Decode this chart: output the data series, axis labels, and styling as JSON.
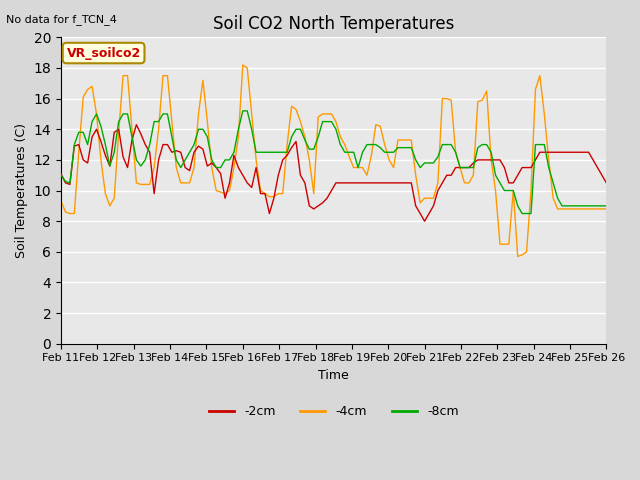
{
  "title": "Soil CO2 North Temperatures",
  "subtitle": "No data for f_TCN_4",
  "ylabel": "Soil Temperatures (C)",
  "xlabel": "Time",
  "annotation": "VR_soilco2",
  "ylim": [
    0,
    20
  ],
  "yticks": [
    0,
    2,
    4,
    6,
    8,
    10,
    12,
    14,
    16,
    18,
    20
  ],
  "x_labels": [
    "Feb 11",
    "Feb 12",
    "Feb 13",
    "Feb 14",
    "Feb 15",
    "Feb 16",
    "Feb 17",
    "Feb 18",
    "Feb 19",
    "Feb 20",
    "Feb 21",
    "Feb 22",
    "Feb 23",
    "Feb 24",
    "Feb 25",
    "Feb 26"
  ],
  "bg_color": "#e8e8e8",
  "plot_bg_color": "#e8e8e8",
  "line_2cm_color": "#cc0000",
  "line_4cm_color": "#ff9900",
  "line_8cm_color": "#00aa00",
  "legend_labels": [
    "-2cm",
    "-4cm",
    "-8cm"
  ],
  "data_2cm": [
    11.1,
    10.5,
    10.4,
    12.9,
    13.0,
    12.0,
    11.8,
    13.5,
    14.0,
    13.2,
    12.3,
    11.6,
    13.8,
    14.0,
    12.2,
    11.5,
    13.3,
    14.3,
    13.7,
    13.0,
    12.5,
    9.8,
    12.0,
    13.0,
    13.0,
    12.5,
    12.6,
    12.5,
    11.5,
    11.3,
    12.5,
    12.9,
    12.7,
    11.6,
    11.8,
    11.5,
    11.1,
    9.5,
    10.5,
    12.3,
    11.5,
    11.0,
    10.5,
    10.2,
    11.5,
    9.8,
    9.8,
    8.5,
    9.5,
    11.0,
    12.0,
    12.3,
    12.8,
    13.2,
    11.0,
    10.5,
    9.0,
    8.8,
    9.0,
    9.2,
    9.5,
    10.0,
    10.5,
    10.5,
    10.5,
    10.5,
    10.5,
    10.5,
    10.5,
    10.5,
    10.5,
    10.5,
    10.5,
    10.5,
    10.5,
    10.5,
    10.5,
    10.5,
    10.5,
    10.5,
    9.0,
    8.5,
    8.0,
    8.5,
    9.0,
    10.0,
    10.5,
    11.0,
    11.0,
    11.5,
    11.5,
    11.5,
    11.5,
    11.8,
    12.0,
    12.0,
    12.0,
    12.0,
    12.0,
    12.0,
    11.5,
    10.5,
    10.5,
    11.0,
    11.5,
    11.5,
    11.5,
    12.0,
    12.5,
    12.5,
    12.5,
    12.5,
    12.5,
    12.5,
    12.5,
    12.5,
    12.5,
    12.5,
    12.5,
    12.5,
    12.0,
    11.5,
    11.0,
    10.5
  ],
  "data_4cm": [
    9.3,
    8.6,
    8.5,
    8.5,
    12.5,
    16.1,
    16.6,
    16.8,
    15.0,
    12.0,
    9.8,
    9.0,
    9.5,
    13.8,
    17.5,
    17.5,
    14.0,
    10.5,
    10.4,
    10.4,
    10.4,
    11.5,
    14.0,
    17.5,
    17.5,
    14.5,
    11.5,
    10.5,
    10.5,
    10.5,
    11.5,
    15.0,
    17.2,
    14.5,
    11.5,
    10.0,
    9.9,
    9.8,
    10.0,
    11.5,
    13.5,
    18.2,
    18.0,
    15.0,
    12.0,
    10.0,
    9.8,
    9.6,
    9.6,
    9.8,
    9.8,
    13.0,
    15.5,
    15.3,
    14.5,
    13.5,
    12.0,
    9.8,
    14.8,
    15.0,
    15.0,
    15.0,
    14.5,
    13.5,
    13.0,
    12.2,
    11.5,
    11.5,
    11.5,
    11.0,
    12.3,
    14.3,
    14.2,
    13.0,
    12.0,
    11.5,
    13.3,
    13.3,
    13.3,
    13.3,
    11.0,
    9.2,
    9.5,
    9.5,
    9.5,
    10.5,
    16.0,
    16.0,
    15.9,
    12.5,
    11.5,
    10.5,
    10.5,
    11.0,
    15.8,
    15.9,
    16.5,
    12.0,
    10.0,
    6.5,
    6.5,
    6.5,
    10.0,
    5.7,
    5.8,
    6.0,
    10.0,
    16.6,
    17.5,
    15.0,
    12.0,
    9.5,
    8.8,
    8.8,
    8.8,
    8.8,
    8.8,
    8.8,
    8.8,
    8.8,
    8.8,
    8.8,
    8.8,
    8.8
  ],
  "data_8cm": [
    11.0,
    10.6,
    10.5,
    13.0,
    13.8,
    13.8,
    13.0,
    14.5,
    15.0,
    14.2,
    13.0,
    11.6,
    12.5,
    14.5,
    15.0,
    15.0,
    13.5,
    12.0,
    11.6,
    12.0,
    13.0,
    14.5,
    14.5,
    15.0,
    15.0,
    13.5,
    12.0,
    11.5,
    12.0,
    12.5,
    13.0,
    14.0,
    14.0,
    13.5,
    12.0,
    11.5,
    11.5,
    12.0,
    12.0,
    12.5,
    14.0,
    15.2,
    15.2,
    14.0,
    12.5,
    12.5,
    12.5,
    12.5,
    12.5,
    12.5,
    12.5,
    12.5,
    13.5,
    14.0,
    14.0,
    13.3,
    12.7,
    12.7,
    13.5,
    14.5,
    14.5,
    14.5,
    14.0,
    13.0,
    12.5,
    12.5,
    12.5,
    11.5,
    12.5,
    13.0,
    13.0,
    13.0,
    12.8,
    12.5,
    12.5,
    12.5,
    12.8,
    12.8,
    12.8,
    12.8,
    12.0,
    11.5,
    11.8,
    11.8,
    11.8,
    12.2,
    13.0,
    13.0,
    13.0,
    12.5,
    11.5,
    11.5,
    11.5,
    11.5,
    12.8,
    13.0,
    13.0,
    12.5,
    11.0,
    10.5,
    10.0,
    10.0,
    10.0,
    9.0,
    8.5,
    8.5,
    8.5,
    13.0,
    13.0,
    13.0,
    11.5,
    10.5,
    9.5,
    9.0,
    9.0,
    9.0,
    9.0,
    9.0,
    9.0,
    9.0,
    9.0,
    9.0,
    9.0,
    9.0
  ]
}
